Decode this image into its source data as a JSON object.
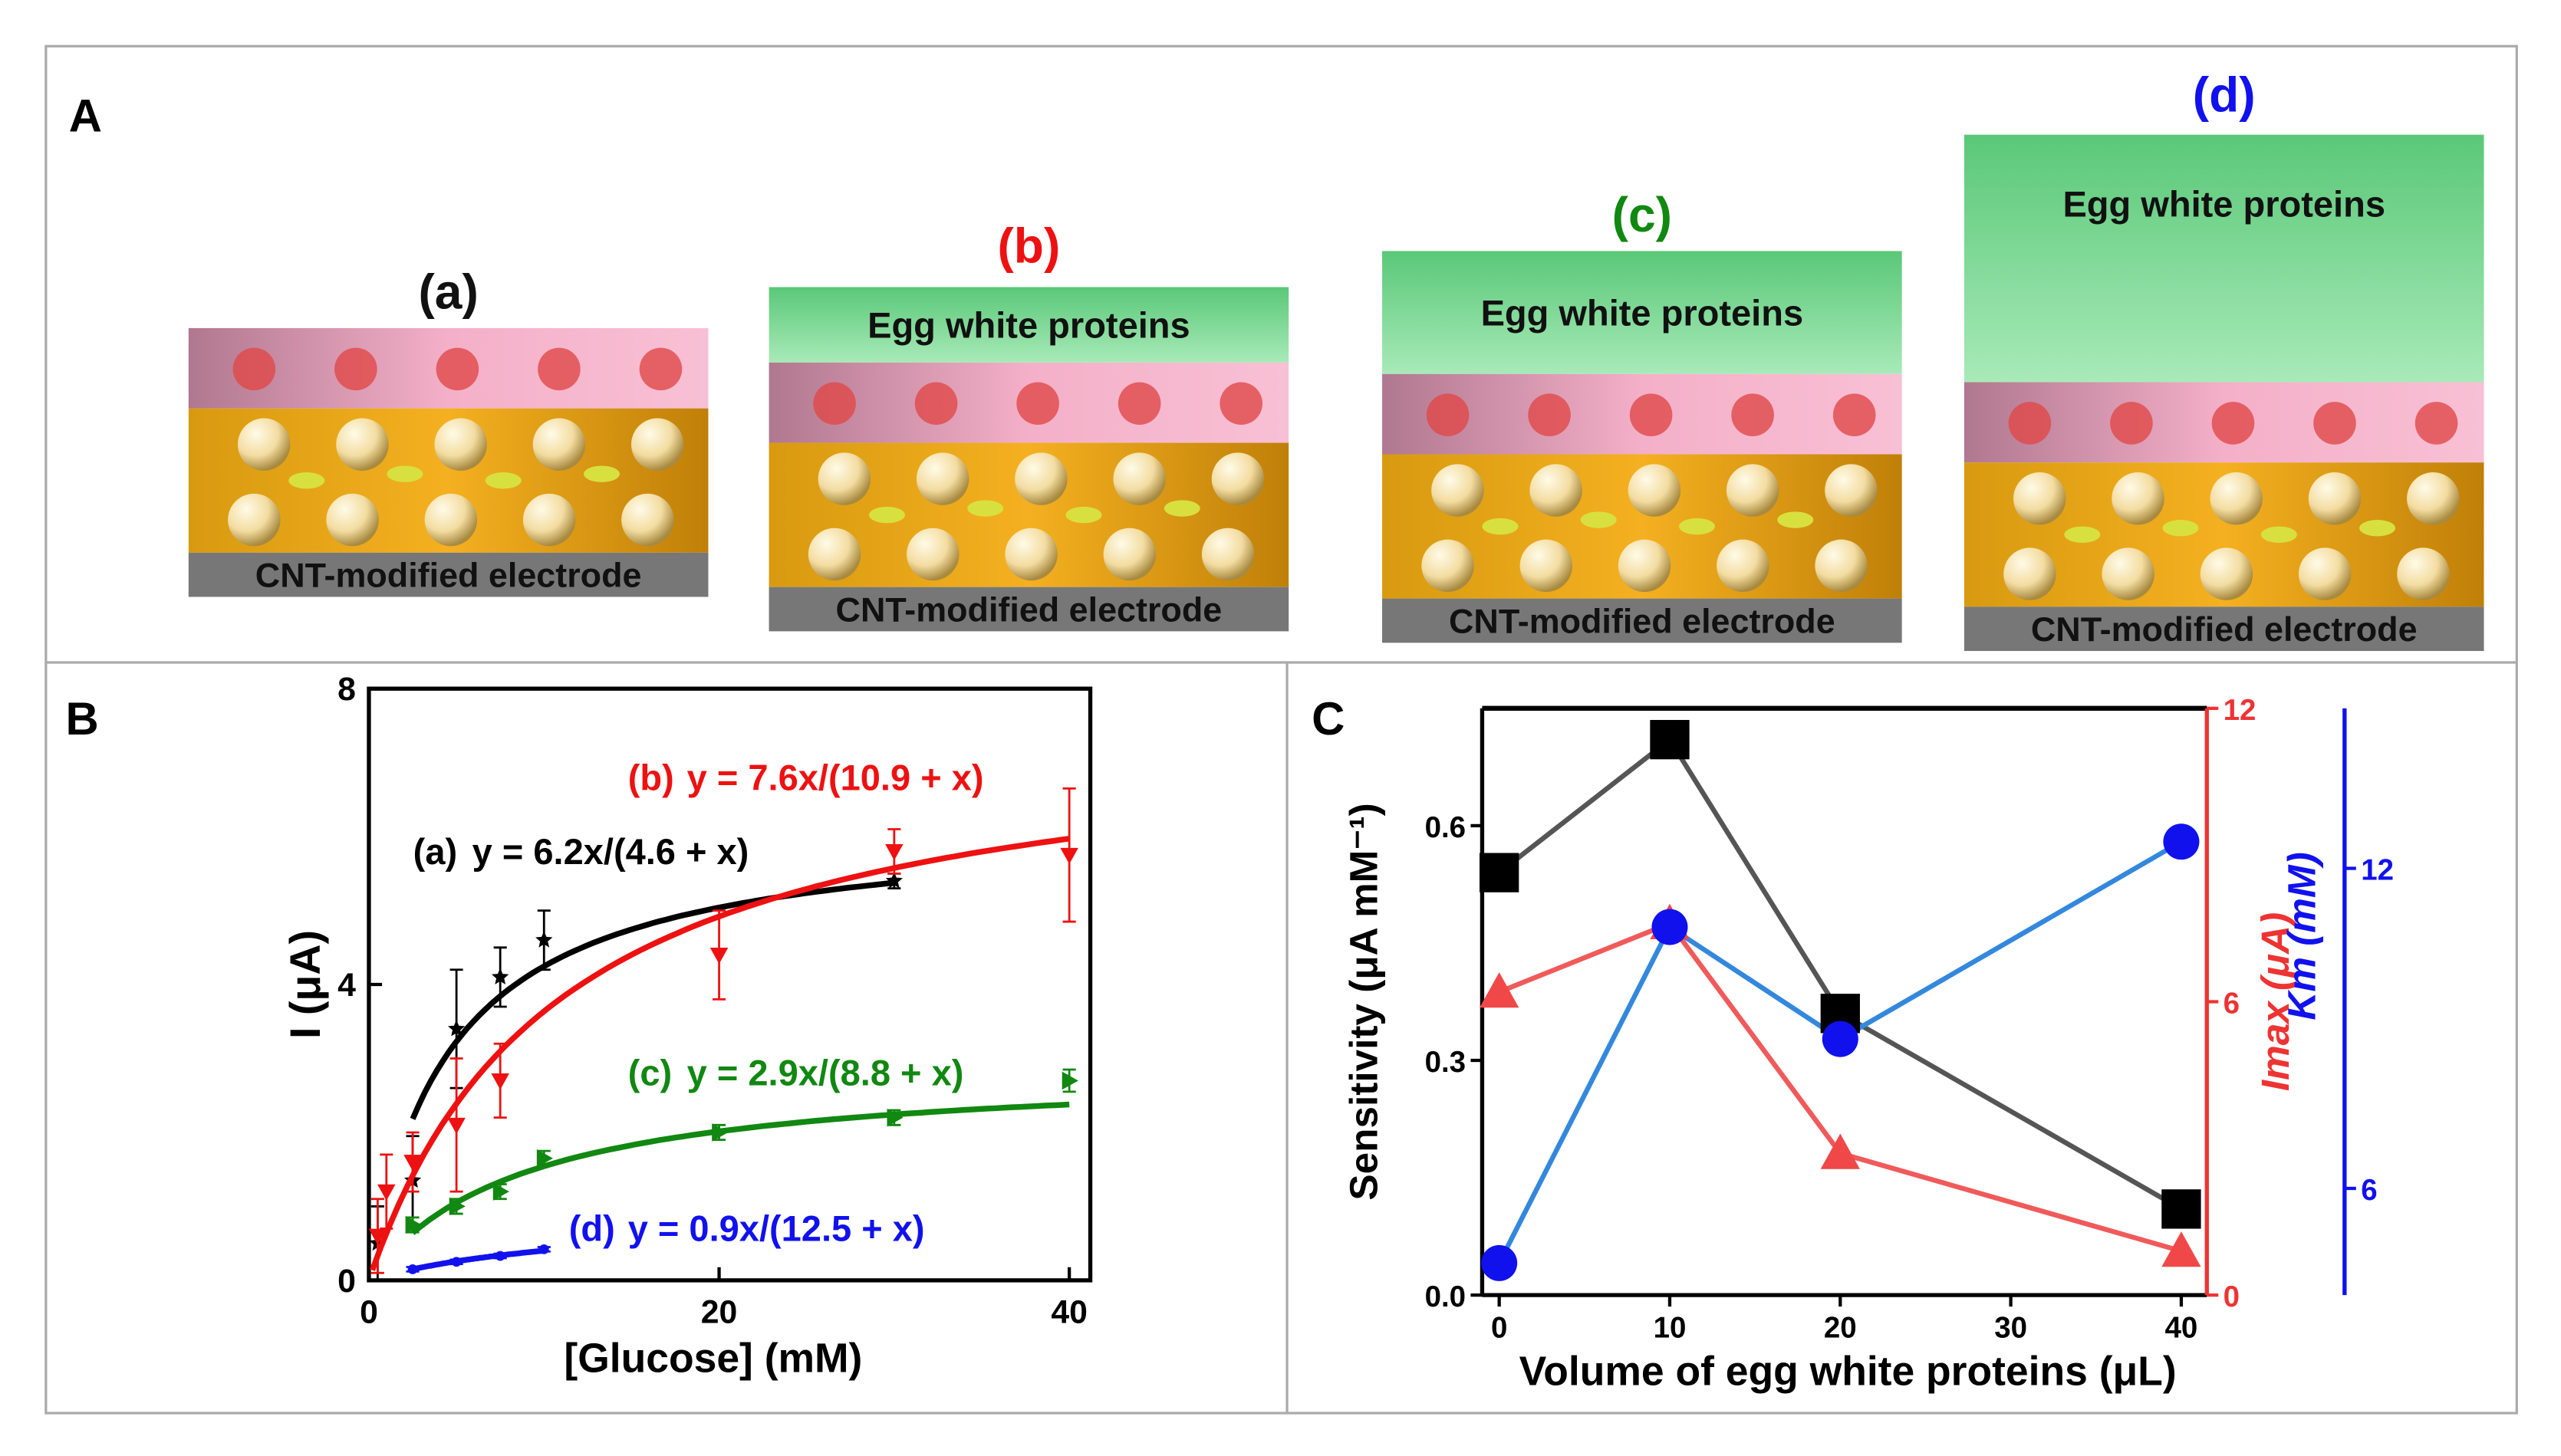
{
  "panel_a": {
    "label": "A",
    "schemes": [
      {
        "label": "(a)",
        "color": "#111111",
        "electrode": "CNT-modified electrode"
      },
      {
        "label": "(b)",
        "color": "#ee1111",
        "protein": "Egg white proteins",
        "electrode": "CNT-modified electrode"
      },
      {
        "label": "(c)",
        "color": "#118811",
        "protein": "Egg white proteins",
        "electrode": "CNT-modified electrode"
      },
      {
        "label": "(d)",
        "color": "#1111ee",
        "protein": "Egg white proteins",
        "electrode": "CNT-modified electrode"
      }
    ]
  },
  "chart_data": [
    {
      "panel": "B",
      "type": "line",
      "xlabel": "[Glucose] (mM)",
      "ylabel": "I (μA)",
      "xlim": [
        0,
        41.2
      ],
      "ylim": [
        0,
        8
      ],
      "xticks": [
        0,
        20,
        40
      ],
      "yticks": [
        0,
        4,
        8
      ],
      "series": [
        {
          "name": "(a)",
          "equation": "y = 6.2x/(4.6 + x)",
          "color": "#000000",
          "marker": "star",
          "x": [
            0.5,
            2.5,
            5,
            7.5,
            10,
            30
          ],
          "values": [
            0.5,
            1.35,
            3.4,
            4.1,
            4.6,
            5.4
          ],
          "errors": [
            0.5,
            0.6,
            0.8,
            0.4,
            0.4,
            0.1
          ],
          "fit": {
            "vmax": 6.2,
            "km": 4.6,
            "xrange": [
              2.5,
              30
            ]
          }
        },
        {
          "name": "(b)",
          "equation": "y = 7.6x/(10.9 + x)",
          "color": "#ee1111",
          "marker": "triangle-down",
          "x": [
            0.5,
            1,
            2.5,
            5,
            7.5,
            20,
            30,
            40
          ],
          "values": [
            0.6,
            1.2,
            1.6,
            2.1,
            2.7,
            4.4,
            5.8,
            5.75
          ],
          "errors": [
            0.5,
            0.5,
            0.4,
            0.9,
            0.5,
            0.6,
            0.3,
            0.9
          ],
          "fit": {
            "vmax": 7.6,
            "km": 10.9,
            "xrange": [
              0.2,
              40
            ]
          }
        },
        {
          "name": "(c)",
          "equation": "y = 2.9x/(8.8 + x)",
          "color": "#118811",
          "marker": "triangle-right",
          "x": [
            2.5,
            5,
            7.5,
            10,
            20,
            30,
            40
          ],
          "values": [
            0.75,
            1.0,
            1.2,
            1.65,
            2.0,
            2.2,
            2.7
          ],
          "errors": [
            0.1,
            0.1,
            0.1,
            0.1,
            0.1,
            0.1,
            0.15
          ],
          "fit": {
            "vmax": 2.9,
            "km": 8.8,
            "xrange": [
              2.5,
              40
            ]
          }
        },
        {
          "name": "(d)",
          "equation": "y = 0.9x/(12.5 + x)",
          "color": "#1111ee",
          "marker": "circle",
          "x": [
            2.5,
            5,
            7.5,
            10
          ],
          "values": [
            0.15,
            0.25,
            0.33,
            0.42
          ],
          "errors": [
            0.03,
            0.03,
            0.03,
            0.03
          ],
          "fit": {
            "vmax": 0.9,
            "km": 12.5,
            "xrange": [
              2.5,
              10
            ]
          }
        }
      ]
    },
    {
      "panel": "C",
      "type": "line",
      "xlabel": "Volume of egg white proteins (μL)",
      "ylabel": "Sensitivity (μA mM⁻¹)",
      "y2label": "Imax (μA)",
      "y3label": "Km (mM)",
      "xlim": [
        -1,
        41.5
      ],
      "ylim": [
        0,
        0.75
      ],
      "y2lim": [
        0,
        12
      ],
      "y3lim": [
        4,
        15
      ],
      "xticks": [
        0,
        10,
        20,
        30,
        40
      ],
      "yticks": [
        {
          "value": 0,
          "label": "0.0"
        },
        0.3,
        0.6
      ],
      "y2ticks": [
        0,
        6,
        12
      ],
      "y3ticks": [
        6,
        12
      ],
      "y2color": "#ee3333",
      "y3color": "#1111ee",
      "x": [
        0,
        10,
        20,
        40
      ],
      "series": [
        {
          "color": "#000000",
          "line_color": "#555555",
          "marker": "square",
          "values": [
            0.54,
            0.71,
            0.36,
            0.11
          ]
        },
        {
          "color": "#f04848",
          "line_color": "#f05a5a",
          "marker": "triangle",
          "axis": "y2",
          "values": [
            6.2,
            7.6,
            2.9,
            0.9
          ]
        },
        {
          "color": "#1111ee",
          "line_color": "#3388dd",
          "marker": "circle",
          "axis": "y3",
          "values": [
            4.6,
            10.9,
            8.8,
            12.5
          ]
        }
      ]
    }
  ]
}
